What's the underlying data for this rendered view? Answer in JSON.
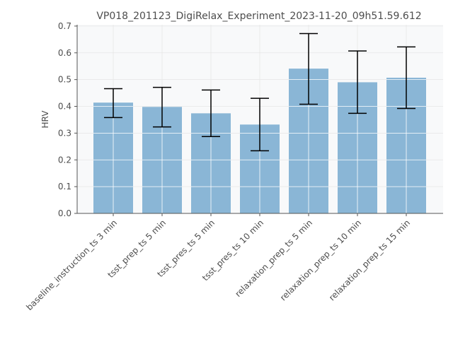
{
  "chart_data": {
    "type": "bar",
    "title": "VP018_201123_DigiRelax_Experiment_2023-11-20_09h51.59.612",
    "xlabel": "",
    "ylabel": "HRV",
    "categories": [
      "baseline_instruction_ts 3 min",
      "tsst_prep_ts 5 min",
      "tsst_pres_ts 5 min",
      "tsst_pres_ts 10 min",
      "relaxation_prep_ts 5 min",
      "relaxation_prep_ts 10 min",
      "relaxation_prep_ts 15 min"
    ],
    "values": [
      0.414,
      0.398,
      0.374,
      0.332,
      0.541,
      0.49,
      0.507
    ],
    "error_low": [
      0.358,
      0.323,
      0.287,
      0.234,
      0.408,
      0.374,
      0.392
    ],
    "error_high": [
      0.466,
      0.471,
      0.461,
      0.43,
      0.672,
      0.607,
      0.622
    ],
    "ylim": [
      0,
      0.705
    ],
    "yticks": [
      0.0,
      0.1,
      0.2,
      0.3,
      0.4,
      0.5,
      0.6,
      0.7
    ],
    "ytick_labels": [
      "0.0",
      "0.1",
      "0.2",
      "0.3",
      "0.4",
      "0.5",
      "0.6",
      "0.7"
    ],
    "grid": true,
    "colors": {
      "bar": "#8ab6d6",
      "error": "#000000",
      "grid": "#e6e6e6",
      "axes_bg": "#f8f9fa",
      "axis": "#555555"
    }
  }
}
